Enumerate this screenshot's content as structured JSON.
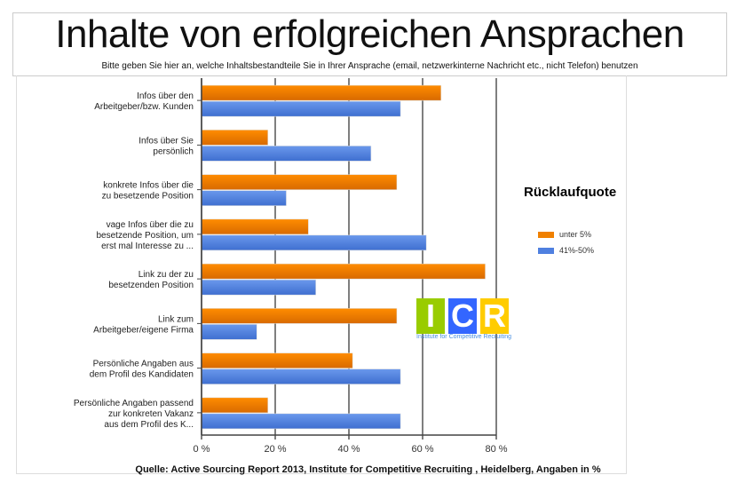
{
  "title": "Inhalte von erfolgreichen  Ansprachen",
  "subtitle": "Bitte geben Sie hier an, welche Inhaltsbestandteile Sie in Ihrer Ansprache (email, netzwerkinterne Nachricht etc., nicht Telefon) benutzen",
  "source": "Quelle: Active Sourcing Report 2013, Institute for Competitive Recruiting , Heidelberg, Angaben in %",
  "logo": {
    "letters": [
      "I",
      "C",
      "R"
    ],
    "colors": [
      "#99cc00",
      "#3366ff",
      "#ffcc00"
    ],
    "text": "Institute for Competitive Recruiting"
  },
  "chart_data": {
    "type": "bar",
    "orientation": "horizontal",
    "categories": [
      [
        "Infos über den",
        "Arbeitgeber/bzw. Kunden"
      ],
      [
        "Infos über Sie",
        "persönlich"
      ],
      [
        "konkrete Infos über die",
        "zu besetzende Position"
      ],
      [
        "vage Infos über die zu",
        "besetzende Position, um",
        "erst mal Interesse zu ..."
      ],
      [
        "Link zu der zu",
        "besetzenden Position"
      ],
      [
        "Link zum",
        "Arbeitgeber/eigene Firma"
      ],
      [
        "Persönliche Angaben aus",
        "dem Profil des Kandidaten"
      ],
      [
        "Persönliche Angaben passend",
        "zur konkreten Vakanz",
        "aus dem Profil des K..."
      ]
    ],
    "series": [
      {
        "name": "unter 5%",
        "color": "#f08000",
        "values": [
          65,
          18,
          53,
          29,
          77,
          53,
          41,
          18
        ]
      },
      {
        "name": "41%-50%",
        "color": "#4f80e0",
        "values": [
          54,
          46,
          23,
          61,
          31,
          15,
          54,
          54
        ]
      }
    ],
    "legend_title": "Rücklaufquote",
    "xlim": [
      0,
      80
    ],
    "ticks": [
      "0 %",
      "20 %",
      "40 %",
      "60 %",
      "80 %"
    ],
    "grid": true,
    "legend": "right"
  }
}
